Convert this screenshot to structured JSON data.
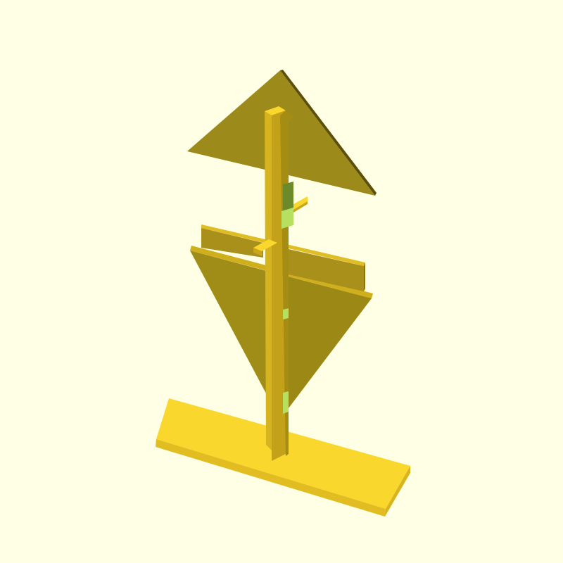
{
  "viewport": {
    "background": "#ffffe5"
  },
  "model": {
    "description_colors": {
      "top_face": "#f9d72c",
      "front_face": "#c8a71a",
      "side_face": "#a8900f",
      "shadow_face": "#8c7a14",
      "dark_edge": "#5c4f0a",
      "inner_green": "#6c8a2a",
      "inner_light_green": "#b8e060"
    }
  }
}
